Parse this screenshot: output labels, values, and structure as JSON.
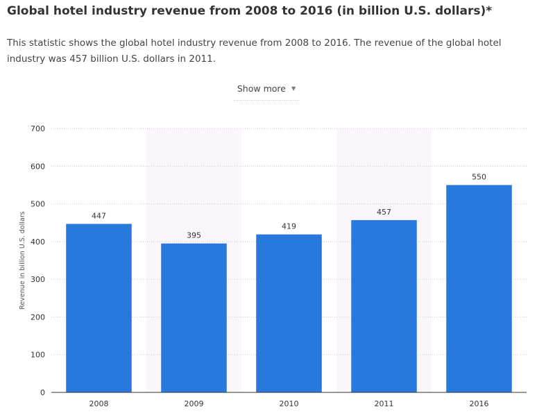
{
  "header": {
    "title": "Global hotel industry revenue from 2008 to 2016 (in billion U.S. dollars)*",
    "description": "This statistic shows the global hotel industry revenue from 2008 to 2016. The revenue of the global hotel industry was 457 billion U.S. dollars in 2011.",
    "show_more_label": "Show more",
    "show_more_icon": "chevron-down-icon"
  },
  "chart_data": {
    "type": "bar",
    "categories": [
      "2008",
      "2009",
      "2010",
      "2011",
      "2016"
    ],
    "values": [
      447,
      395,
      419,
      457,
      550
    ],
    "data_labels": [
      "447",
      "395",
      "419",
      "457",
      "550"
    ],
    "title": "",
    "xlabel": "",
    "ylabel": "Revenue in billion U.S. dollars",
    "ylim": [
      0,
      700
    ],
    "yticks": [
      0,
      100,
      200,
      300,
      400,
      500,
      600,
      700
    ],
    "grid": true,
    "legend": "none",
    "colors": {
      "bar": "#2979dc",
      "band": "#fbf6fb",
      "grid": "#c8c8c8",
      "axis": "#333333"
    }
  }
}
